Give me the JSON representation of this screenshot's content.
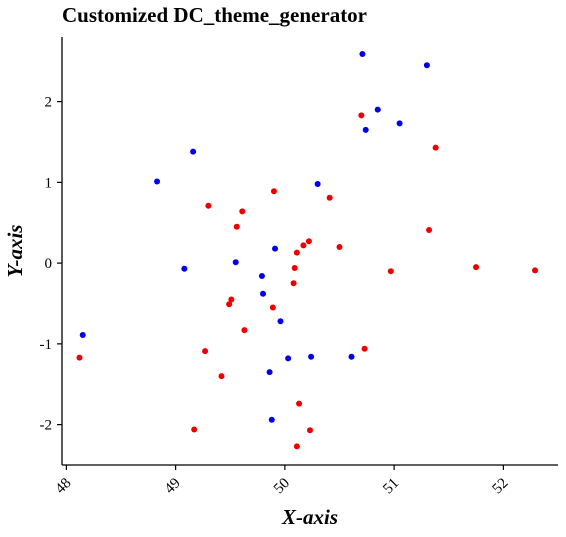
{
  "chart_data": {
    "type": "scatter",
    "title": "Customized DC_theme_generator",
    "xlabel": "X-axis",
    "ylabel": "Y-axis",
    "xlim": [
      47.96,
      52.5
    ],
    "ylim": [
      -2.5,
      2.8
    ],
    "xticks": [
      "48",
      "49",
      "50",
      "51",
      "52"
    ],
    "yticks": [
      "-2",
      "-1",
      "0",
      "1",
      "2"
    ],
    "grid": false,
    "legend": "none",
    "series": [
      {
        "color": "#0000ee",
        "points": [
          [
            48.15,
            -0.89
          ],
          [
            48.83,
            1.01
          ],
          [
            49.08,
            -0.07
          ],
          [
            49.16,
            1.38
          ],
          [
            49.55,
            0.01
          ],
          [
            49.79,
            -0.16
          ],
          [
            49.8,
            -0.38
          ],
          [
            49.86,
            -1.35
          ],
          [
            49.88,
            -1.94
          ],
          [
            49.91,
            0.18
          ],
          [
            49.96,
            -0.72
          ],
          [
            50.03,
            -1.18
          ],
          [
            50.24,
            -1.16
          ],
          [
            50.3,
            0.98
          ],
          [
            50.61,
            -1.16
          ],
          [
            50.71,
            2.59
          ],
          [
            50.74,
            1.65
          ],
          [
            50.85,
            1.9
          ],
          [
            51.05,
            1.73
          ],
          [
            51.3,
            2.45
          ]
        ]
      },
      {
        "color": "#ee0000",
        "points": [
          [
            48.12,
            -1.17
          ],
          [
            49.17,
            -2.06
          ],
          [
            49.27,
            -1.09
          ],
          [
            49.3,
            0.71
          ],
          [
            49.42,
            -1.4
          ],
          [
            49.49,
            -0.51
          ],
          [
            49.51,
            -0.45
          ],
          [
            49.56,
            0.45
          ],
          [
            49.61,
            0.64
          ],
          [
            49.63,
            -0.83
          ],
          [
            49.89,
            -0.55
          ],
          [
            49.9,
            0.89
          ],
          [
            50.08,
            -0.25
          ],
          [
            50.09,
            -0.06
          ],
          [
            50.11,
            0.13
          ],
          [
            50.11,
            -2.27
          ],
          [
            50.13,
            -1.74
          ],
          [
            50.17,
            0.22
          ],
          [
            50.22,
            0.27
          ],
          [
            50.23,
            -2.07
          ],
          [
            50.41,
            0.81
          ],
          [
            50.5,
            0.2
          ],
          [
            50.7,
            1.83
          ],
          [
            50.73,
            -1.06
          ],
          [
            50.97,
            -0.1
          ],
          [
            51.32,
            0.41
          ],
          [
            51.38,
            1.43
          ],
          [
            51.75,
            -0.05
          ],
          [
            52.29,
            -0.09
          ]
        ]
      }
    ]
  }
}
